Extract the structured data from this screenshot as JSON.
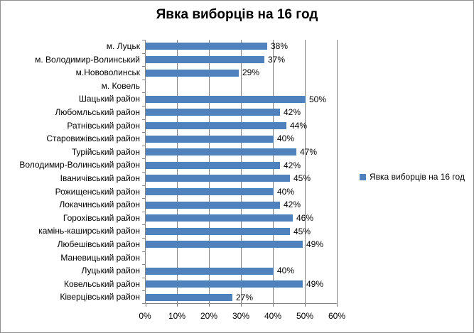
{
  "chart_data": {
    "type": "bar",
    "orientation": "horizontal",
    "title": "Явка виборців на 16 год",
    "legend": "Явка виборців на 16 год",
    "legend_position": "right",
    "categories": [
      "м. Луцьк",
      "м. Володимир-Волинський",
      "м.Нововолинськ",
      "м. Ковель",
      "Шацький район",
      "Любомльський район",
      "Ратнівський район",
      "Старовижівський район",
      "Турійський район",
      "Володимир-Волинський район",
      "Іваничівський район",
      "Рожищенський район",
      "Локачинський район",
      "Горохівський район",
      "камінь-каширський район",
      "Любешівський район",
      "Маневицький район",
      "Луцький район",
      "Ковельський район",
      "Ківерцівський район"
    ],
    "values": [
      38,
      37,
      29,
      null,
      50,
      42,
      44,
      40,
      47,
      42,
      45,
      40,
      42,
      46,
      45,
      49,
      null,
      40,
      49,
      27
    ],
    "data_label_format": "{v}%",
    "x_ticks": [
      "0%",
      "10%",
      "20%",
      "30%",
      "40%",
      "50%",
      "60%"
    ],
    "xlim": [
      0,
      60
    ],
    "grid": true,
    "colors": {
      "bar": "#4F81BD",
      "gridline": "#848484",
      "axis": "#848484",
      "text": "#000000",
      "border": "#8F8F8F",
      "background": "#FFFFFF"
    }
  }
}
